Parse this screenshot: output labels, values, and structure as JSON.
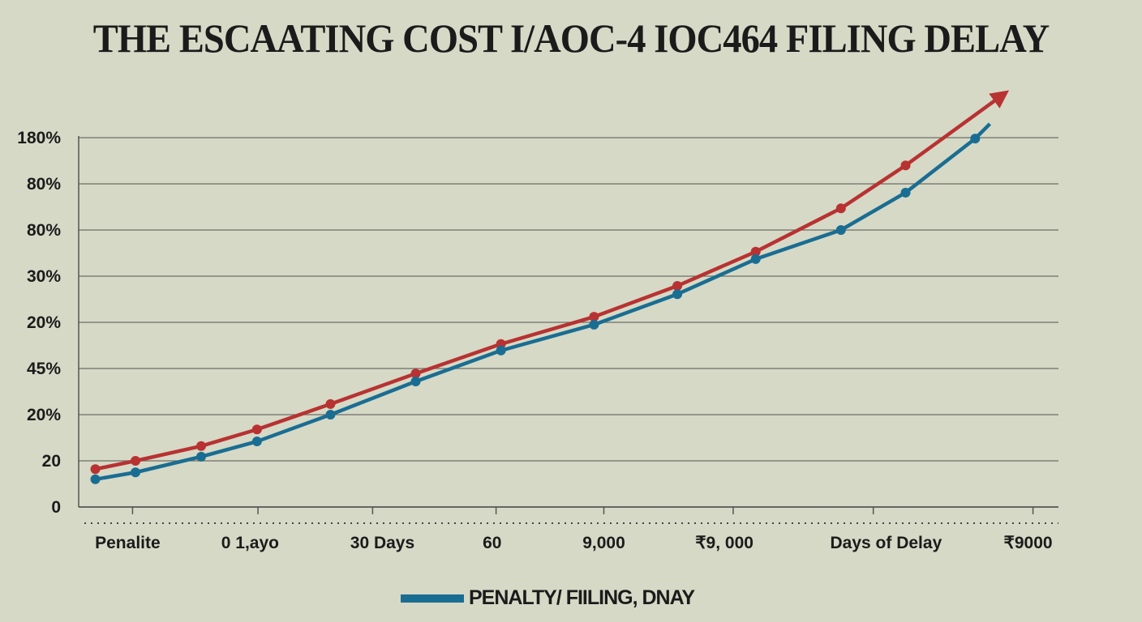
{
  "chart_data": {
    "type": "line",
    "title": "THE ESCAATING COST  I/AOC-4 IOC464 FILING DELAY",
    "y_tick_labels": [
      "0",
      "20",
      "20%",
      "45%",
      "20%",
      "30%",
      "80%",
      "80%",
      "180%"
    ],
    "ylim": [
      0,
      8
    ],
    "xlim": [
      0,
      100
    ],
    "x_ticks": [
      5.5,
      18.3,
      30,
      42.6,
      53.6,
      66.8,
      81.1,
      97.4
    ],
    "x_tick_labels": [
      {
        "text": "Penalite",
        "x": 5
      },
      {
        "text": "0 1,ayo",
        "x": 17.5
      },
      {
        "text": "30 Days",
        "x": 31
      },
      {
        "text": "60",
        "x": 42.2
      },
      {
        "text": "9,000",
        "x": 53.6
      },
      {
        "text": "₹9, 000",
        "x": 65.9
      },
      {
        "text": "Days of Delay",
        "x": 82.4
      },
      {
        "text": "₹9000",
        "x": 96.9
      }
    ],
    "grid": true,
    "legend": {
      "position": "bottom",
      "entries": [
        {
          "label": "PENALTY/ FIILING, DNAY",
          "color": "#1a6d92"
        }
      ]
    },
    "series": [
      {
        "color": "#b83232",
        "arrow": true,
        "x": [
          1.7,
          5.8,
          12.5,
          18.2,
          25.7,
          34.4,
          43.1,
          52.6,
          61.1,
          69.1,
          77.8,
          84.4,
          94.2
        ],
        "y": [
          0.82,
          1.0,
          1.32,
          1.68,
          2.23,
          2.89,
          3.53,
          4.12,
          4.79,
          5.53,
          6.47,
          7.4,
          8.91
        ],
        "markers": 12
      },
      {
        "name": "PENALTY/ FIILING, DNAY",
        "color": "#1a6d92",
        "x": [
          1.7,
          5.8,
          12.5,
          18.2,
          25.7,
          34.4,
          43.1,
          52.6,
          61.1,
          69.1,
          77.8,
          84.4,
          91.5,
          93.0
        ],
        "y": [
          0.6,
          0.75,
          1.09,
          1.42,
          2.0,
          2.72,
          3.39,
          3.95,
          4.61,
          5.37,
          6.0,
          6.81,
          7.98,
          8.3
        ],
        "markers": 13
      }
    ]
  }
}
